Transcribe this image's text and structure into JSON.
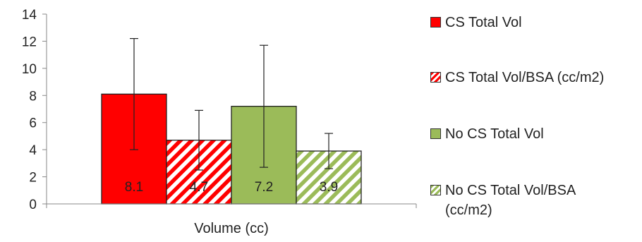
{
  "chart_data": {
    "type": "bar",
    "title": "",
    "xlabel": "Volume (cc)",
    "ylabel": "",
    "categories": [
      "Volume (cc)"
    ],
    "ylim": [
      0,
      14
    ],
    "yticks": [
      0,
      2,
      4,
      6,
      8,
      10,
      12,
      14
    ],
    "grid": false,
    "legend_position": "right",
    "series": [
      {
        "name": "CS Total Vol",
        "value": 8.1,
        "error_low": 4.0,
        "error_high": 12.2,
        "label": "8.1",
        "color": "#ff0000",
        "pattern": "solid"
      },
      {
        "name": "CS Total Vol/BSA (cc/m2)",
        "value": 4.7,
        "error_low": 2.5,
        "error_high": 6.9,
        "label": "4.7",
        "color": "#ff0000",
        "pattern": "diagonal-stripes"
      },
      {
        "name": "No CS Total Vol",
        "value": 7.2,
        "error_low": 2.7,
        "error_high": 11.7,
        "label": "7.2",
        "color": "#9bbb59",
        "pattern": "solid"
      },
      {
        "name": "No CS Total Vol/BSA (cc/m2)",
        "value": 3.9,
        "error_low": 2.6,
        "error_high": 5.2,
        "label": "3.9",
        "color": "#9bbb59",
        "pattern": "diagonal-stripes"
      }
    ]
  },
  "legend": {
    "items": [
      {
        "line1": "CS Total Vol",
        "line2": ""
      },
      {
        "line1": "CS Total Vol/BSA (cc/m2)",
        "line2": ""
      },
      {
        "line1": "No CS Total Vol",
        "line2": ""
      },
      {
        "line1": "No CS Total Vol/BSA",
        "line2": "(cc/m2)"
      }
    ]
  }
}
